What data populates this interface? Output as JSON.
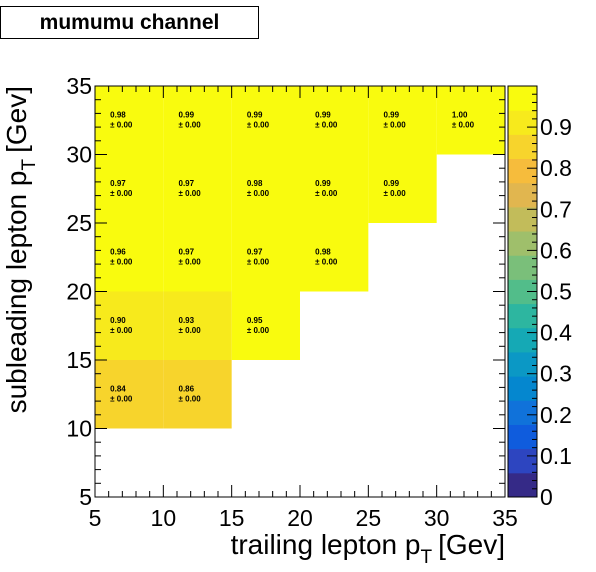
{
  "title": "mumumu channel",
  "chart_data": {
    "type": "heatmap",
    "xlabel": "trailing lepton p",
    "xlabel_sub": "T",
    "xlabel_unit": "[Gev]",
    "ylabel": "subleading lepton p",
    "ylabel_sub": "T",
    "ylabel_unit": "[Gev]",
    "xlim": [
      5,
      35
    ],
    "ylim": [
      5,
      35
    ],
    "x_ticks": [
      "5",
      "10",
      "15",
      "20",
      "25",
      "30",
      "35"
    ],
    "y_ticks": [
      "5",
      "10",
      "15",
      "20",
      "25",
      "30",
      "35"
    ],
    "z_range": [
      0,
      1
    ],
    "z_ticks": [
      "0",
      "0.1",
      "0.2",
      "0.3",
      "0.4",
      "0.5",
      "0.6",
      "0.7",
      "0.8",
      "0.9"
    ],
    "x_edges": [
      5,
      10,
      15,
      20,
      25,
      30,
      35
    ],
    "y_edges": [
      10,
      15,
      20,
      25,
      30,
      35
    ],
    "error_prefix": "± ",
    "cells": [
      {
        "x": [
          5,
          10
        ],
        "y": [
          10,
          15
        ],
        "value": 0.84,
        "label": "0.84",
        "error": "0.00"
      },
      {
        "x": [
          10,
          15
        ],
        "y": [
          10,
          15
        ],
        "value": 0.86,
        "label": "0.86",
        "error": "0.00"
      },
      {
        "x": [
          5,
          10
        ],
        "y": [
          15,
          20
        ],
        "value": 0.9,
        "label": "0.90",
        "error": "0.00"
      },
      {
        "x": [
          10,
          15
        ],
        "y": [
          15,
          20
        ],
        "value": 0.93,
        "label": "0.93",
        "error": "0.00"
      },
      {
        "x": [
          15,
          20
        ],
        "y": [
          15,
          20
        ],
        "value": 0.95,
        "label": "0.95",
        "error": "0.00"
      },
      {
        "x": [
          5,
          10
        ],
        "y": [
          20,
          25
        ],
        "value": 0.96,
        "label": "0.96",
        "error": "0.00"
      },
      {
        "x": [
          10,
          15
        ],
        "y": [
          20,
          25
        ],
        "value": 0.97,
        "label": "0.97",
        "error": "0.00"
      },
      {
        "x": [
          15,
          20
        ],
        "y": [
          20,
          25
        ],
        "value": 0.97,
        "label": "0.97",
        "error": "0.00"
      },
      {
        "x": [
          20,
          25
        ],
        "y": [
          20,
          25
        ],
        "value": 0.98,
        "label": "0.98",
        "error": "0.00"
      },
      {
        "x": [
          5,
          10
        ],
        "y": [
          25,
          30
        ],
        "value": 0.97,
        "label": "0.97",
        "error": "0.00"
      },
      {
        "x": [
          10,
          15
        ],
        "y": [
          25,
          30
        ],
        "value": 0.97,
        "label": "0.97",
        "error": "0.00"
      },
      {
        "x": [
          15,
          20
        ],
        "y": [
          25,
          30
        ],
        "value": 0.98,
        "label": "0.98",
        "error": "0.00"
      },
      {
        "x": [
          20,
          25
        ],
        "y": [
          25,
          30
        ],
        "value": 0.99,
        "label": "0.99",
        "error": "0.00"
      },
      {
        "x": [
          25,
          30
        ],
        "y": [
          25,
          30
        ],
        "value": 0.99,
        "label": "0.99",
        "error": "0.00"
      },
      {
        "x": [
          5,
          10
        ],
        "y": [
          30,
          35
        ],
        "value": 0.98,
        "label": "0.98",
        "error": "0.00"
      },
      {
        "x": [
          10,
          15
        ],
        "y": [
          30,
          35
        ],
        "value": 0.99,
        "label": "0.99",
        "error": "0.00"
      },
      {
        "x": [
          15,
          20
        ],
        "y": [
          30,
          35
        ],
        "value": 0.99,
        "label": "0.99",
        "error": "0.00"
      },
      {
        "x": [
          20,
          25
        ],
        "y": [
          30,
          35
        ],
        "value": 0.99,
        "label": "0.99",
        "error": "0.00"
      },
      {
        "x": [
          25,
          30
        ],
        "y": [
          30,
          35
        ],
        "value": 0.99,
        "label": "0.99",
        "error": "0.00"
      },
      {
        "x": [
          30,
          35
        ],
        "y": [
          30,
          35
        ],
        "value": 1.0,
        "label": "1.00",
        "error": "0.00"
      }
    ],
    "colormap": [
      "#352a87",
      "#2d45c0",
      "#0f5cdd",
      "#1072da",
      "#0587cf",
      "#0b98c5",
      "#15a9b5",
      "#2db6a0",
      "#52bd8a",
      "#7abf7a",
      "#9fbf6b",
      "#c2bc5a",
      "#e1b64f",
      "#f6bc3c",
      "#f7d42c",
      "#f7ea1c",
      "#f9fb0e"
    ],
    "grid": false,
    "legend": "colorbar-right"
  }
}
